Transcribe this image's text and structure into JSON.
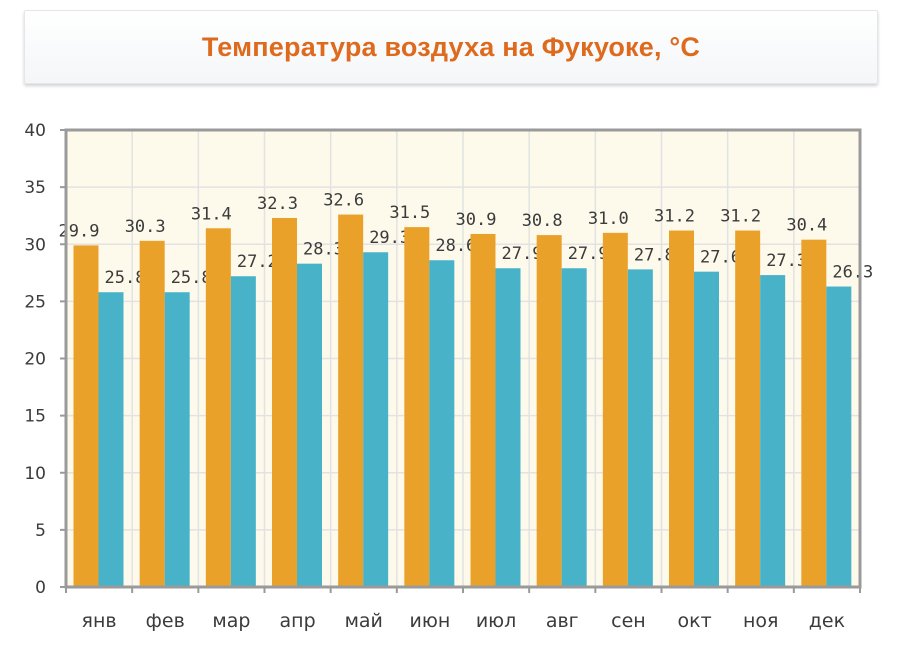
{
  "chart_data": {
    "type": "bar",
    "title": "Температура воздуха на Фукуоке, °C",
    "categories": [
      "янв",
      "фев",
      "мар",
      "апр",
      "май",
      "июн",
      "июл",
      "авг",
      "сен",
      "окт",
      "ноя",
      "дек"
    ],
    "series": [
      {
        "values": [
          29.9,
          30.3,
          31.4,
          32.3,
          32.6,
          31.5,
          30.9,
          30.8,
          31.0,
          31.2,
          31.2,
          30.4
        ],
        "color": "#eaa12a"
      },
      {
        "values": [
          25.8,
          25.8,
          27.2,
          28.3,
          29.3,
          28.6,
          27.9,
          27.9,
          27.8,
          27.6,
          27.3,
          26.3
        ],
        "color": "#47b2c8"
      }
    ],
    "value_labels": [
      [
        "29.9",
        "30.3",
        "31.4",
        "32.3",
        "32.6",
        "31.5",
        "30.9",
        "30.8",
        "31.0",
        "31.2",
        "31.2",
        "30.4"
      ],
      [
        "25.8",
        "25.8",
        "27.2",
        "28.3",
        "29.3",
        "28.6",
        "27.9",
        "27.9",
        "27.8",
        "27.6",
        "27.3",
        "26.3"
      ]
    ],
    "ylim": [
      0,
      40
    ],
    "yticks": [
      "0",
      "5",
      "10",
      "15",
      "20",
      "25",
      "30",
      "35",
      "40"
    ],
    "grid": true,
    "background_color": "#fdfaec"
  }
}
